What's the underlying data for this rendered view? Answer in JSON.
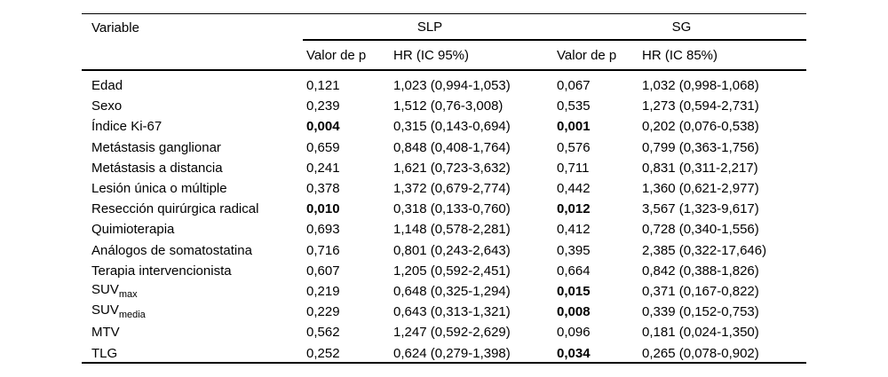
{
  "colors": {
    "background": "#ffffff",
    "text": "#000000",
    "rule": "#000000"
  },
  "table": {
    "header": {
      "variable_label": "Variable",
      "groups": [
        {
          "label": "SLP",
          "p_label": "Valor de p",
          "hr_label": "HR (IC 95%)"
        },
        {
          "label": "SG",
          "p_label": "Valor de p",
          "hr_label": "HR (IC 85%)"
        }
      ]
    },
    "rows": [
      {
        "variable": "Edad",
        "sub": "",
        "slp_p": "0,121",
        "slp_p_bold": false,
        "slp_hr": "1,023 (0,994-1,053)",
        "sg_p": "0,067",
        "sg_p_bold": false,
        "sg_hr": "1,032 (0,998-1,068)"
      },
      {
        "variable": "Sexo",
        "sub": "",
        "slp_p": "0,239",
        "slp_p_bold": false,
        "slp_hr": "1,512 (0,76-3,008)",
        "sg_p": "0,535",
        "sg_p_bold": false,
        "sg_hr": "1,273 (0,594-2,731)"
      },
      {
        "variable": "Índice Ki-67",
        "sub": "",
        "slp_p": "0,004",
        "slp_p_bold": true,
        "slp_hr": "0,315 (0,143-0,694)",
        "sg_p": "0,001",
        "sg_p_bold": true,
        "sg_hr": "0,202 (0,076-0,538)"
      },
      {
        "variable": "Metástasis ganglionar",
        "sub": "",
        "slp_p": "0,659",
        "slp_p_bold": false,
        "slp_hr": "0,848 (0,408-1,764)",
        "sg_p": "0,576",
        "sg_p_bold": false,
        "sg_hr": "0,799 (0,363-1,756)"
      },
      {
        "variable": "Metástasis a distancia",
        "sub": "",
        "slp_p": "0,241",
        "slp_p_bold": false,
        "slp_hr": "1,621 (0,723-3,632)",
        "sg_p": "0,711",
        "sg_p_bold": false,
        "sg_hr": "0,831 (0,311-2,217)"
      },
      {
        "variable": "Lesión única o múltiple",
        "sub": "",
        "slp_p": "0,378",
        "slp_p_bold": false,
        "slp_hr": "1,372 (0,679-2,774)",
        "sg_p": "0,442",
        "sg_p_bold": false,
        "sg_hr": "1,360 (0,621-2,977)"
      },
      {
        "variable": "Resección quirúrgica radical",
        "sub": "",
        "slp_p": "0,010",
        "slp_p_bold": true,
        "slp_hr": "0,318 (0,133-0,760)",
        "sg_p": "0,012",
        "sg_p_bold": true,
        "sg_hr": "3,567 (1,323-9,617)"
      },
      {
        "variable": "Quimioterapia",
        "sub": "",
        "slp_p": "0,693",
        "slp_p_bold": false,
        "slp_hr": "1,148 (0,578-2,281)",
        "sg_p": "0,412",
        "sg_p_bold": false,
        "sg_hr": "0,728 (0,340-1,556)"
      },
      {
        "variable": "Análogos de somatostatina",
        "sub": "",
        "slp_p": "0,716",
        "slp_p_bold": false,
        "slp_hr": "0,801 (0,243-2,643)",
        "sg_p": "0,395",
        "sg_p_bold": false,
        "sg_hr": "2,385 (0,322-17,646)"
      },
      {
        "variable": "Terapia intervencionista",
        "sub": "",
        "slp_p": "0,607",
        "slp_p_bold": false,
        "slp_hr": "1,205 (0,592-2,451)",
        "sg_p": "0,664",
        "sg_p_bold": false,
        "sg_hr": "0,842 (0,388-1,826)"
      },
      {
        "variable": "SUV",
        "sub": "max",
        "slp_p": "0,219",
        "slp_p_bold": false,
        "slp_hr": "0,648 (0,325-1,294)",
        "sg_p": "0,015",
        "sg_p_bold": true,
        "sg_hr": "0,371 (0,167-0,822)"
      },
      {
        "variable": "SUV",
        "sub": "media",
        "slp_p": "0,229",
        "slp_p_bold": false,
        "slp_hr": "0,643 (0,313-1,321)",
        "sg_p": "0,008",
        "sg_p_bold": true,
        "sg_hr": "0,339 (0,152-0,753)"
      },
      {
        "variable": "MTV",
        "sub": "",
        "slp_p": "0,562",
        "slp_p_bold": false,
        "slp_hr": "1,247 (0,592-2,629)",
        "sg_p": "0,096",
        "sg_p_bold": false,
        "sg_hr": "0,181 (0,024-1,350)"
      },
      {
        "variable": "TLG",
        "sub": "",
        "slp_p": "0,252",
        "slp_p_bold": false,
        "slp_hr": "0,624 (0,279-1,398)",
        "sg_p": "0,034",
        "sg_p_bold": true,
        "sg_hr": "0,265 (0,078-0,902)"
      }
    ]
  }
}
